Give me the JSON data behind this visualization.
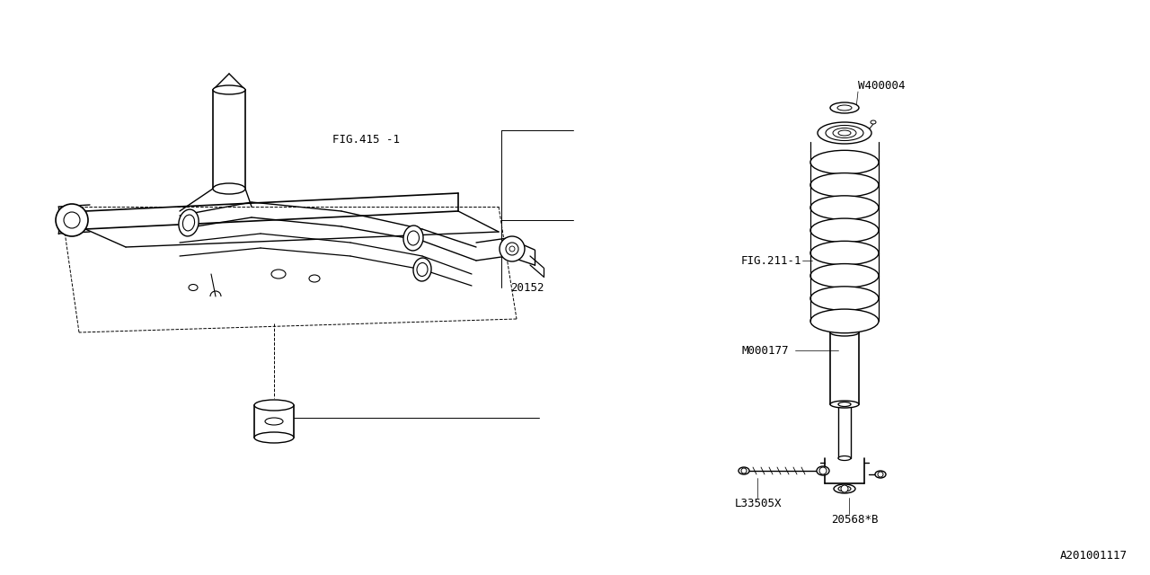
{
  "bg_color": "#ffffff",
  "line_color": "#000000",
  "fig_width": 12.8,
  "fig_height": 6.4,
  "diagram_id": "A201001117",
  "labels": {
    "fig415": "FIG.415 -1",
    "fig211": "FIG.211-1",
    "m000177": "M000177",
    "w400004": "W400004",
    "l33505x": "L33505X",
    "part20152": "20152",
    "part20568": "20568*B"
  },
  "font_family": "monospace",
  "font_size_label": 9,
  "font_size_id": 9
}
